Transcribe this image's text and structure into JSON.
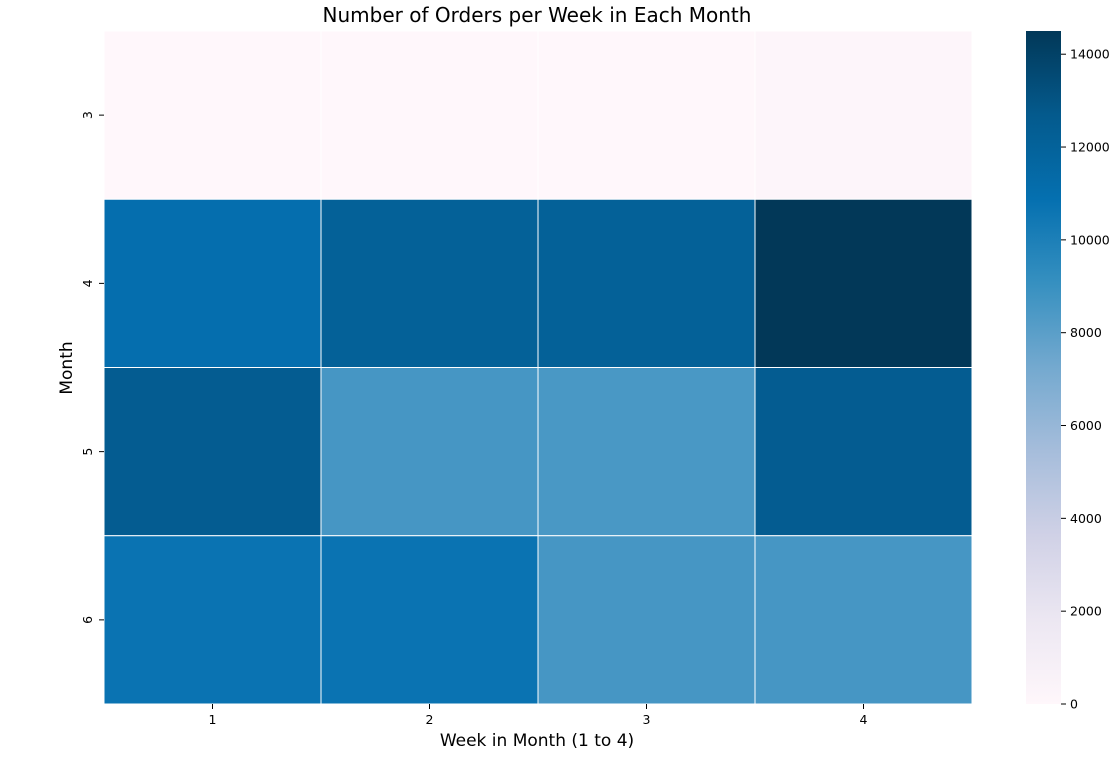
{
  "chart_data": {
    "type": "heatmap",
    "title": "Number of Orders per Week in Each Month",
    "xlabel": "Week in Month (1 to 4)",
    "ylabel": "Month",
    "x_categories": [
      "1",
      "2",
      "3",
      "4"
    ],
    "y_categories": [
      "3",
      "4",
      "5",
      "6"
    ],
    "values": [
      [
        0,
        0,
        0,
        200
      ],
      [
        11000,
        12100,
        12100,
        14500
      ],
      [
        12500,
        8600,
        8500,
        12500
      ],
      [
        10700,
        10700,
        8600,
        8600
      ]
    ],
    "colorbar": {
      "min": 0,
      "max": 14500,
      "ticks": [
        0,
        2000,
        4000,
        6000,
        8000,
        10000,
        12000,
        14000
      ],
      "colormap": "PuBu",
      "colors": [
        "#fff7fb",
        "#ece7f2",
        "#d0d1e6",
        "#a6bddb",
        "#74a9cf",
        "#3690c0",
        "#0570b0",
        "#045a8d",
        "#023858"
      ]
    },
    "grid": false
  }
}
